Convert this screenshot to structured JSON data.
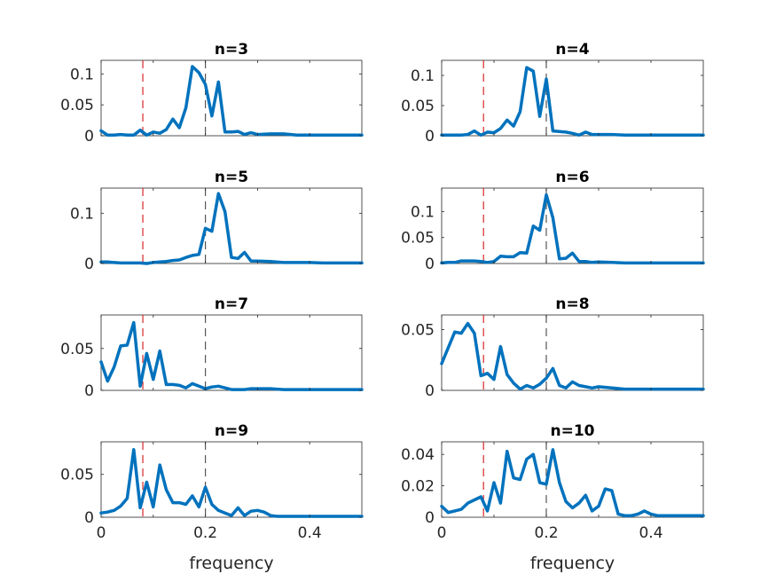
{
  "chart_data": [
    {
      "type": "line",
      "title": "n=3",
      "xlabel": "",
      "xlim": [
        0,
        0.5
      ],
      "ylim": [
        0,
        0.122
      ],
      "yticks": [
        {
          "v": 0,
          "label": "0"
        },
        {
          "v": 0.05,
          "label": "0.05"
        },
        {
          "v": 0.1,
          "label": "0.1"
        }
      ],
      "xticks": [],
      "vlines": [
        {
          "x": 0.08,
          "color": "#d62728"
        },
        {
          "x": 0.2,
          "color": "#555555"
        }
      ],
      "x": [
        0,
        0.0125,
        0.025,
        0.0375,
        0.05,
        0.0625,
        0.075,
        0.0875,
        0.1,
        0.1125,
        0.125,
        0.1375,
        0.15,
        0.1625,
        0.175,
        0.1875,
        0.2,
        0.2125,
        0.225,
        0.2375,
        0.25,
        0.2625,
        0.275,
        0.2875,
        0.3,
        0.325,
        0.35,
        0.375,
        0.4,
        0.425,
        0.45,
        0.475,
        0.5
      ],
      "series": [
        {
          "color": "#0072bd",
          "values": [
            0.008,
            0.001,
            0.001,
            0.002,
            0.001,
            0.001,
            0.009,
            0.001,
            0.006,
            0.004,
            0.01,
            0.027,
            0.013,
            0.045,
            0.112,
            0.102,
            0.083,
            0.032,
            0.087,
            0.006,
            0.006,
            0.007,
            0.002,
            0.005,
            0.002,
            0.003,
            0.003,
            0.001,
            0.001,
            0.001,
            0.001,
            0.001,
            0.001
          ]
        }
      ]
    },
    {
      "type": "line",
      "title": "n=4",
      "xlabel": "",
      "xlim": [
        0,
        0.5
      ],
      "ylim": [
        0,
        0.125
      ],
      "yticks": [
        {
          "v": 0,
          "label": "0"
        },
        {
          "v": 0.05,
          "label": "0.05"
        },
        {
          "v": 0.1,
          "label": "0.1"
        }
      ],
      "xticks": [],
      "vlines": [
        {
          "x": 0.08,
          "color": "#d62728"
        },
        {
          "x": 0.2,
          "color": "#555555"
        }
      ],
      "x": [
        0,
        0.0125,
        0.025,
        0.0375,
        0.05,
        0.0625,
        0.075,
        0.0875,
        0.1,
        0.1125,
        0.125,
        0.1375,
        0.15,
        0.1625,
        0.175,
        0.1875,
        0.2,
        0.2125,
        0.225,
        0.2375,
        0.25,
        0.2625,
        0.275,
        0.2875,
        0.3,
        0.325,
        0.35,
        0.375,
        0.4,
        0.425,
        0.45,
        0.475,
        0.5
      ],
      "series": [
        {
          "color": "#0072bd",
          "values": [
            0.001,
            0.001,
            0.001,
            0.001,
            0.002,
            0.008,
            0.001,
            0.006,
            0.005,
            0.012,
            0.026,
            0.016,
            0.04,
            0.113,
            0.107,
            0.032,
            0.094,
            0.008,
            0.007,
            0.006,
            0.004,
            0.001,
            0.006,
            0.002,
            0.002,
            0.002,
            0.001,
            0.001,
            0.001,
            0.001,
            0.001,
            0.001,
            0.001
          ]
        }
      ]
    },
    {
      "type": "line",
      "title": "n=5",
      "xlabel": "",
      "xlim": [
        0,
        0.5
      ],
      "ylim": [
        0,
        0.15
      ],
      "yticks": [
        {
          "v": 0,
          "label": "0"
        },
        {
          "v": 0.1,
          "label": "0.1"
        }
      ],
      "xticks": [],
      "vlines": [
        {
          "x": 0.08,
          "color": "#d62728"
        },
        {
          "x": 0.2,
          "color": "#555555"
        }
      ],
      "x": [
        0,
        0.0125,
        0.025,
        0.0375,
        0.05,
        0.0625,
        0.075,
        0.0875,
        0.1,
        0.1125,
        0.125,
        0.1375,
        0.15,
        0.1625,
        0.175,
        0.1875,
        0.2,
        0.2125,
        0.225,
        0.2375,
        0.25,
        0.2625,
        0.275,
        0.2875,
        0.3,
        0.325,
        0.35,
        0.375,
        0.4,
        0.425,
        0.45,
        0.475,
        0.5
      ],
      "series": [
        {
          "color": "#0072bd",
          "values": [
            0.003,
            0.003,
            0.002,
            0.001,
            0.001,
            0.001,
            0.001,
            0,
            0.002,
            0.003,
            0.004,
            0.006,
            0.007,
            0.012,
            0.016,
            0.018,
            0.07,
            0.064,
            0.139,
            0.103,
            0.012,
            0.01,
            0.022,
            0.005,
            0.005,
            0.004,
            0.002,
            0.002,
            0.002,
            0.001,
            0.001,
            0.001,
            0.001
          ]
        }
      ]
    },
    {
      "type": "line",
      "title": "n=6",
      "xlabel": "",
      "xlim": [
        0,
        0.5
      ],
      "ylim": [
        0,
        0.145
      ],
      "yticks": [
        {
          "v": 0,
          "label": "0"
        },
        {
          "v": 0.05,
          "label": "0.05"
        },
        {
          "v": 0.1,
          "label": "0.1"
        }
      ],
      "xticks": [],
      "vlines": [
        {
          "x": 0.08,
          "color": "#d62728"
        },
        {
          "x": 0.2,
          "color": "#555555"
        }
      ],
      "x": [
        0,
        0.0125,
        0.025,
        0.0375,
        0.05,
        0.0625,
        0.075,
        0.0875,
        0.1,
        0.1125,
        0.125,
        0.1375,
        0.15,
        0.1625,
        0.175,
        0.1875,
        0.2,
        0.2125,
        0.225,
        0.2375,
        0.25,
        0.2625,
        0.275,
        0.2875,
        0.3,
        0.325,
        0.35,
        0.375,
        0.4,
        0.425,
        0.45,
        0.475,
        0.5
      ],
      "series": [
        {
          "color": "#0072bd",
          "values": [
            0.001,
            0.002,
            0.002,
            0.005,
            0.005,
            0.005,
            0.004,
            0.002,
            0.004,
            0.014,
            0.013,
            0.013,
            0.021,
            0.02,
            0.072,
            0.064,
            0.132,
            0.088,
            0.009,
            0.01,
            0.02,
            0.004,
            0.004,
            0.002,
            0.003,
            0.002,
            0.001,
            0.001,
            0.001,
            0.001,
            0.001,
            0.001,
            0.001
          ]
        }
      ]
    },
    {
      "type": "line",
      "title": "n=7",
      "xlabel": "",
      "xlim": [
        0,
        0.5
      ],
      "ylim": [
        0,
        0.09
      ],
      "yticks": [
        {
          "v": 0,
          "label": "0"
        },
        {
          "v": 0.05,
          "label": "0.05"
        }
      ],
      "xticks": [],
      "vlines": [
        {
          "x": 0.08,
          "color": "#d62728"
        },
        {
          "x": 0.2,
          "color": "#555555"
        }
      ],
      "x": [
        0,
        0.0125,
        0.025,
        0.0375,
        0.05,
        0.0625,
        0.075,
        0.0875,
        0.1,
        0.1125,
        0.125,
        0.1375,
        0.15,
        0.1625,
        0.175,
        0.1875,
        0.2,
        0.2125,
        0.225,
        0.2375,
        0.25,
        0.2625,
        0.275,
        0.2875,
        0.3,
        0.325,
        0.35,
        0.375,
        0.4,
        0.425,
        0.45,
        0.475,
        0.5
      ],
      "series": [
        {
          "color": "#0072bd",
          "values": [
            0.034,
            0.011,
            0.028,
            0.053,
            0.054,
            0.081,
            0.005,
            0.044,
            0.013,
            0.047,
            0.007,
            0.007,
            0.006,
            0.003,
            0.008,
            0.005,
            0.002,
            0.004,
            0.005,
            0.003,
            0.001,
            0.001,
            0.001,
            0.002,
            0.002,
            0.002,
            0.001,
            0.001,
            0.001,
            0.001,
            0.001,
            0.001,
            0.001
          ]
        }
      ]
    },
    {
      "type": "line",
      "title": "n=8",
      "xlabel": "",
      "xlim": [
        0,
        0.5
      ],
      "ylim": [
        0,
        0.062
      ],
      "yticks": [
        {
          "v": 0,
          "label": "0"
        },
        {
          "v": 0.05,
          "label": "0.05"
        }
      ],
      "xticks": [],
      "vlines": [
        {
          "x": 0.08,
          "color": "#d62728"
        },
        {
          "x": 0.2,
          "color": "#555555"
        }
      ],
      "x": [
        0,
        0.0125,
        0.025,
        0.0375,
        0.05,
        0.0625,
        0.075,
        0.0875,
        0.1,
        0.1125,
        0.125,
        0.1375,
        0.15,
        0.1625,
        0.175,
        0.1875,
        0.2,
        0.2125,
        0.225,
        0.2375,
        0.25,
        0.2625,
        0.275,
        0.2875,
        0.3,
        0.325,
        0.35,
        0.375,
        0.4,
        0.425,
        0.45,
        0.475,
        0.5
      ],
      "series": [
        {
          "color": "#0072bd",
          "values": [
            0.022,
            0.035,
            0.048,
            0.047,
            0.055,
            0.047,
            0.012,
            0.014,
            0.009,
            0.036,
            0.013,
            0.006,
            0.001,
            0.004,
            0.002,
            0.005,
            0.01,
            0.018,
            0.004,
            0.002,
            0.007,
            0.004,
            0.003,
            0.002,
            0.003,
            0.002,
            0.001,
            0.001,
            0.001,
            0.001,
            0.001,
            0.001,
            0.001
          ]
        }
      ]
    },
    {
      "type": "line",
      "title": "n=9",
      "xlabel": "frequency",
      "xlim": [
        0,
        0.5
      ],
      "ylim": [
        0,
        0.088
      ],
      "yticks": [
        {
          "v": 0,
          "label": "0"
        },
        {
          "v": 0.05,
          "label": "0.05"
        }
      ],
      "xticks": [
        {
          "v": 0,
          "label": "0"
        },
        {
          "v": 0.2,
          "label": "0.2"
        },
        {
          "v": 0.4,
          "label": "0.4"
        }
      ],
      "vlines": [
        {
          "x": 0.08,
          "color": "#d62728"
        },
        {
          "x": 0.2,
          "color": "#555555"
        }
      ],
      "x": [
        0,
        0.0125,
        0.025,
        0.0375,
        0.05,
        0.0625,
        0.075,
        0.0875,
        0.1,
        0.1125,
        0.125,
        0.1375,
        0.15,
        0.1625,
        0.175,
        0.1875,
        0.2,
        0.2125,
        0.225,
        0.2375,
        0.25,
        0.2625,
        0.275,
        0.2875,
        0.3,
        0.3125,
        0.325,
        0.3375,
        0.35,
        0.375,
        0.4,
        0.425,
        0.45,
        0.475,
        0.5
      ],
      "series": [
        {
          "color": "#0072bd",
          "values": [
            0.005,
            0.006,
            0.008,
            0.013,
            0.022,
            0.079,
            0.011,
            0.041,
            0.012,
            0.061,
            0.032,
            0.017,
            0.017,
            0.015,
            0.025,
            0.012,
            0.035,
            0.015,
            0.008,
            0.005,
            0.002,
            0.011,
            0.002,
            0.007,
            0.008,
            0.006,
            0.002,
            0.001,
            0.001,
            0.001,
            0.001,
            0.001,
            0.001,
            0.001,
            0.001
          ]
        }
      ]
    },
    {
      "type": "line",
      "title": "n=10",
      "xlabel": "frequency",
      "xlim": [
        0,
        0.5
      ],
      "ylim": [
        0,
        0.048
      ],
      "yticks": [
        {
          "v": 0,
          "label": "0"
        },
        {
          "v": 0.02,
          "label": "0.02"
        },
        {
          "v": 0.04,
          "label": "0.04"
        }
      ],
      "xticks": [
        {
          "v": 0,
          "label": "0"
        },
        {
          "v": 0.2,
          "label": "0.2"
        },
        {
          "v": 0.4,
          "label": "0.4"
        }
      ],
      "vlines": [
        {
          "x": 0.08,
          "color": "#d62728"
        },
        {
          "x": 0.2,
          "color": "#555555"
        }
      ],
      "x": [
        0,
        0.0125,
        0.025,
        0.0375,
        0.05,
        0.0625,
        0.075,
        0.0875,
        0.1,
        0.1125,
        0.125,
        0.1375,
        0.15,
        0.1625,
        0.175,
        0.1875,
        0.2,
        0.2125,
        0.225,
        0.2375,
        0.25,
        0.2625,
        0.275,
        0.2875,
        0.3,
        0.3125,
        0.325,
        0.3375,
        0.35,
        0.3625,
        0.375,
        0.3875,
        0.4,
        0.4125,
        0.425,
        0.4375,
        0.45,
        0.4625,
        0.475,
        0.4875,
        0.5
      ],
      "series": [
        {
          "color": "#0072bd",
          "values": [
            0.007,
            0.003,
            0.004,
            0.005,
            0.009,
            0.011,
            0.013,
            0.004,
            0.022,
            0.009,
            0.042,
            0.025,
            0.024,
            0.037,
            0.04,
            0.022,
            0.021,
            0.043,
            0.022,
            0.01,
            0.006,
            0.009,
            0.014,
            0.004,
            0.007,
            0.018,
            0.017,
            0.002,
            0.001,
            0.001,
            0.002,
            0.004,
            0.002,
            0.001,
            0.001,
            0.001,
            0.001,
            0.001,
            0.001,
            0.001,
            0.001
          ]
        }
      ]
    }
  ]
}
